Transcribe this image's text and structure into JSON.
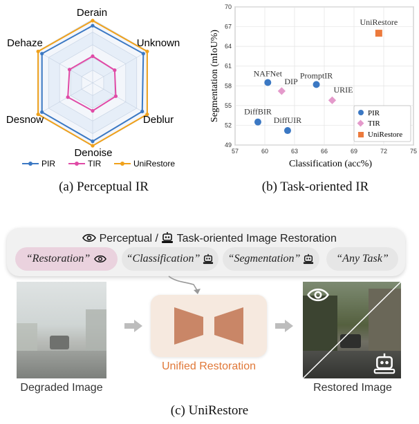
{
  "radar": {
    "axes": [
      "Derain",
      "Unknown",
      "Deblur",
      "Denoise",
      "Desnow",
      "Dehaze"
    ],
    "legend": [
      {
        "name": "PIR",
        "color": "#3b78c3"
      },
      {
        "name": "TIR",
        "color": "#e04aa6"
      },
      {
        "name": "UniRestore",
        "color": "#f0a11a"
      }
    ],
    "caption": "(a) Perceptual IR"
  },
  "chart_data": {
    "type": "scatter",
    "xlabel": "Classification (acc%)",
    "ylabel": "Segmentation (mIoU%)",
    "xlim": [
      57,
      75
    ],
    "ylim": [
      49,
      70
    ],
    "xticks": [
      "57",
      "60",
      "63",
      "66",
      "69",
      "72",
      "75"
    ],
    "yticks": [
      "49",
      "52",
      "55",
      "58",
      "61",
      "64",
      "67",
      "70"
    ],
    "points": [
      {
        "label": "NAFNet",
        "x": 60.3,
        "y": 58.5,
        "group": "PIR"
      },
      {
        "label": "PromptIR",
        "x": 65.2,
        "y": 58.2,
        "group": "PIR"
      },
      {
        "label": "DiffBIR",
        "x": 59.3,
        "y": 52.5,
        "group": "PIR"
      },
      {
        "label": "DiffUIR",
        "x": 62.3,
        "y": 51.2,
        "group": "PIR"
      },
      {
        "label": "DIP",
        "x": 61.7,
        "y": 57.2,
        "group": "TIR"
      },
      {
        "label": "URIE",
        "x": 66.8,
        "y": 55.8,
        "group": "TIR"
      },
      {
        "label": "UniRestore",
        "x": 71.5,
        "y": 66.0,
        "group": "UniRestore"
      }
    ],
    "legend": [
      {
        "name": "PIR",
        "color": "#3b78c3",
        "marker": "circle"
      },
      {
        "name": "TIR",
        "color": "#e49acb",
        "marker": "diamond"
      },
      {
        "name": "UniRestore",
        "color": "#ec7a3c",
        "marker": "square"
      }
    ],
    "legend_position": "bottom-right",
    "caption": "(b) Task-oriented IR"
  },
  "panel_c": {
    "title_perceptual": "Perceptual /",
    "title_rest": "Task-oriented Image Restoration",
    "prompts": [
      "“Restoration”",
      "“Classification”",
      "“Segmentation”",
      "“Any Task”"
    ],
    "degraded_label": "Degraded Image",
    "unified_label": "Unified Restoration",
    "restored_label": "Restored Image",
    "caption": "(c) UniRestore"
  },
  "colors": {
    "accent_orange": "#e07838",
    "bowtie": "#c98667",
    "unified_box": "#f6e9df",
    "pill_pink": "#ead2de",
    "pill_gray": "#e6e6e6"
  }
}
